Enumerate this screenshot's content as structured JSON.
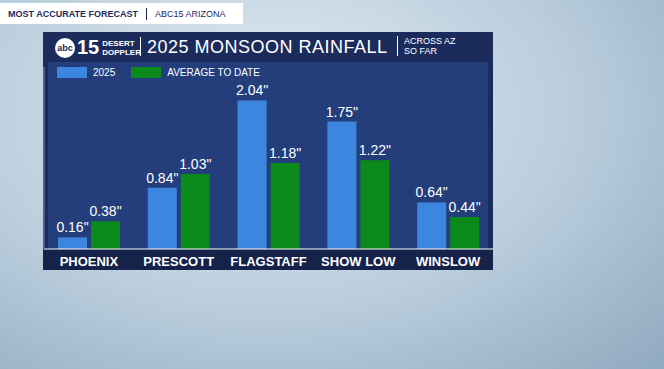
{
  "chart_data": {
    "type": "bar",
    "title": "2025 MONSOON RAINFALL",
    "subtitle": "ACROSS AZ SO FAR",
    "annotations": [
      "MOST ACCURATE FORECAST",
      "ABC15 ARIZONA",
      "abc",
      "15",
      "DESERT",
      "DOPPLER"
    ],
    "categories": [
      "PHOENIX",
      "PRESCOTT",
      "FLAGSTAFF",
      "SHOW LOW",
      "WINSLOW"
    ],
    "series": [
      {
        "name": "2025",
        "color": "#3d86e0",
        "values": [
          0.16,
          0.84,
          2.04,
          1.75,
          0.64
        ],
        "value_labels": [
          "0.16\"",
          "0.84\"",
          "2.04\"",
          "1.75\"",
          "0.64\""
        ]
      },
      {
        "name": "AVERAGE TO DATE",
        "color": "#0b8a1c",
        "values": [
          0.38,
          1.03,
          1.18,
          1.22,
          0.44
        ],
        "value_labels": [
          "0.38\"",
          "1.03\"",
          "1.18\"",
          "1.22\"",
          "0.44\""
        ]
      }
    ],
    "ylim": [
      0,
      2.5
    ],
    "grid": false,
    "legend": "top left",
    "data_labels": true,
    "tick_labels": "x"
  }
}
